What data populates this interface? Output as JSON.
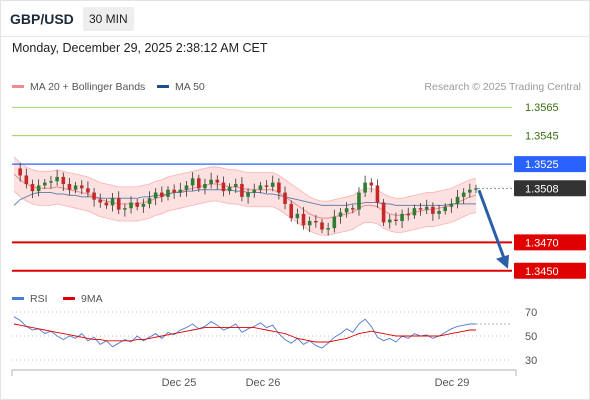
{
  "header": {
    "pair": "GBP/USD",
    "timeframe": "30 MIN",
    "datetime": "Monday, December 29, 2025 2:38:12 AM CET"
  },
  "legend": {
    "ma20": {
      "label": "MA 20 + Bollinger Bands",
      "color": "#f08c8c"
    },
    "ma50": {
      "label": "MA 50",
      "color": "#1f4e8c"
    },
    "credit": "Research © 2025 Trading Central"
  },
  "rsi_legend": {
    "rsi": {
      "label": "RSI",
      "color": "#4c7ad6"
    },
    "ma9": {
      "label": "9MA",
      "color": "#e00000"
    }
  },
  "colors": {
    "bull": "#2e7d32",
    "bear": "#c62828",
    "resistance": "#8bc34a",
    "support": "#e00000",
    "pivot": "#2962ff",
    "current": "#333333",
    "arrow": "#2b5ea8",
    "band_fill": "#fde0e0"
  },
  "chart_data": [
    {
      "type": "candlestick",
      "title": "",
      "ylim": [
        1.344,
        1.3575
      ],
      "x_ticks": [
        "Dec 25",
        "Dec 26",
        "Dec 29"
      ],
      "levels": [
        {
          "label": "1.3565",
          "value": 1.3565,
          "kind": "resistance"
        },
        {
          "label": "1.3545",
          "value": 1.3545,
          "kind": "resistance"
        },
        {
          "label": "1.3525",
          "value": 1.3525,
          "kind": "pivot"
        },
        {
          "label": "1.3508",
          "value": 1.3508,
          "kind": "current"
        },
        {
          "label": "1.3470",
          "value": 1.347,
          "kind": "support"
        },
        {
          "label": "1.3450",
          "value": 1.345,
          "kind": "support"
        }
      ],
      "price_path": [
        1.3522,
        1.3517,
        1.3511,
        1.3506,
        1.351,
        1.3512,
        1.3513,
        1.3516,
        1.3511,
        1.3507,
        1.351,
        1.3508,
        1.3505,
        1.35,
        1.3498,
        1.3496,
        1.3501,
        1.3493,
        1.3494,
        1.3498,
        1.3495,
        1.3497,
        1.3501,
        1.3505,
        1.3502,
        1.3507,
        1.3505,
        1.3507,
        1.351,
        1.3515,
        1.3508,
        1.3511,
        1.3514,
        1.3512,
        1.3506,
        1.3509,
        1.3511,
        1.3502,
        1.3505,
        1.3507,
        1.351,
        1.3509,
        1.3512,
        1.3505,
        1.3497,
        1.3487,
        1.349,
        1.3482,
        1.3485,
        1.3484,
        1.3479,
        1.348,
        1.3488,
        1.3491,
        1.3494,
        1.3493,
        1.3505,
        1.3512,
        1.351,
        1.3498,
        1.3484,
        1.3486,
        1.3485,
        1.349,
        1.3489,
        1.3494,
        1.3493,
        1.3495,
        1.349,
        1.3492,
        1.3495,
        1.3497,
        1.3502,
        1.3505,
        1.3507,
        1.3508
      ],
      "ma20_path": [
        1.3518,
        1.3514,
        1.3511,
        1.3509,
        1.3508,
        1.3508,
        1.3508,
        1.3509,
        1.3508,
        1.3507,
        1.3506,
        1.3505,
        1.3504,
        1.3502,
        1.35,
        1.3499,
        1.3498,
        1.3497,
        1.3497,
        1.3497,
        1.3497,
        1.3498,
        1.3499,
        1.3501,
        1.3502,
        1.3504,
        1.3505,
        1.3506,
        1.3507,
        1.3508,
        1.3509,
        1.351,
        1.3511,
        1.3511,
        1.351,
        1.3509,
        1.3509,
        1.3508,
        1.3507,
        1.3507,
        1.3507,
        1.3507,
        1.3507,
        1.3505,
        1.3502,
        1.3499,
        1.3496,
        1.3493,
        1.349,
        1.3488,
        1.3487,
        1.3487,
        1.3488,
        1.3489,
        1.349,
        1.3491,
        1.3494,
        1.3496,
        1.3496,
        1.3495,
        1.3492,
        1.349,
        1.3489,
        1.3489,
        1.349,
        1.3491,
        1.3492,
        1.3493,
        1.3493,
        1.3494,
        1.3495,
        1.3496,
        1.3498,
        1.35,
        1.3502,
        1.3503
      ],
      "band_width": 0.0012,
      "ma50_path": [
        1.3496,
        1.35,
        1.3502,
        1.3504,
        1.3505,
        1.3505,
        1.3505,
        1.3504,
        1.3504,
        1.3503,
        1.3503,
        1.3502,
        1.3502,
        1.3502,
        1.3501,
        1.3501,
        1.3501,
        1.3501,
        1.3501,
        1.3501,
        1.3501,
        1.3502,
        1.3502,
        1.3503,
        1.3503,
        1.3504,
        1.3505,
        1.3505,
        1.3506,
        1.3506,
        1.3507,
        1.3507,
        1.3507,
        1.3507,
        1.3507,
        1.3507,
        1.3506,
        1.3506,
        1.3505,
        1.3505,
        1.3505,
        1.3504,
        1.3504,
        1.3503,
        1.3502,
        1.3501,
        1.35,
        1.3499,
        1.3498,
        1.3497,
        1.3496,
        1.3496,
        1.3496,
        1.3496,
        1.3496,
        1.3497,
        1.3497,
        1.3498,
        1.3498,
        1.3498,
        1.3497,
        1.3497,
        1.3496,
        1.3496,
        1.3496,
        1.3496,
        1.3496,
        1.3496,
        1.3496,
        1.3496,
        1.3496,
        1.3497,
        1.3497,
        1.3497,
        1.3497,
        1.3497
      ],
      "forecast": {
        "from": 1.3508,
        "to": 1.345
      }
    },
    {
      "type": "line",
      "title": "",
      "ylim": [
        25,
        75
      ],
      "y_ticks": [
        "70",
        "50",
        "30"
      ],
      "series": [
        {
          "name": "RSI",
          "values": [
            66,
            63,
            58,
            55,
            56,
            52,
            54,
            50,
            47,
            50,
            48,
            52,
            46,
            49,
            43,
            46,
            41,
            44,
            47,
            45,
            50,
            46,
            49,
            52,
            48,
            53,
            51,
            55,
            57,
            60,
            56,
            58,
            62,
            59,
            55,
            57,
            60,
            53,
            56,
            58,
            61,
            57,
            59,
            52,
            47,
            44,
            48,
            43,
            46,
            42,
            40,
            44,
            49,
            52,
            56,
            53,
            60,
            64,
            58,
            49,
            46,
            48,
            45,
            50,
            48,
            52,
            50,
            51,
            48,
            50,
            53,
            56,
            58,
            59,
            60,
            60
          ]
        },
        {
          "name": "9MA",
          "values": [
            60,
            59,
            58,
            57,
            56,
            55,
            54,
            53,
            52,
            51,
            50,
            49,
            48,
            47,
            47,
            46,
            46,
            46,
            46,
            46,
            47,
            47,
            48,
            49,
            50,
            51,
            52,
            53,
            54,
            55,
            56,
            57,
            57,
            57,
            57,
            57,
            57,
            57,
            57,
            57,
            56,
            55,
            54,
            53,
            52,
            50,
            48,
            47,
            46,
            45,
            45,
            45,
            46,
            47,
            48,
            50,
            52,
            53,
            54,
            53,
            52,
            51,
            50,
            50,
            50,
            50,
            50,
            50,
            50,
            50,
            51,
            52,
            53,
            54,
            55,
            55
          ]
        }
      ]
    }
  ]
}
